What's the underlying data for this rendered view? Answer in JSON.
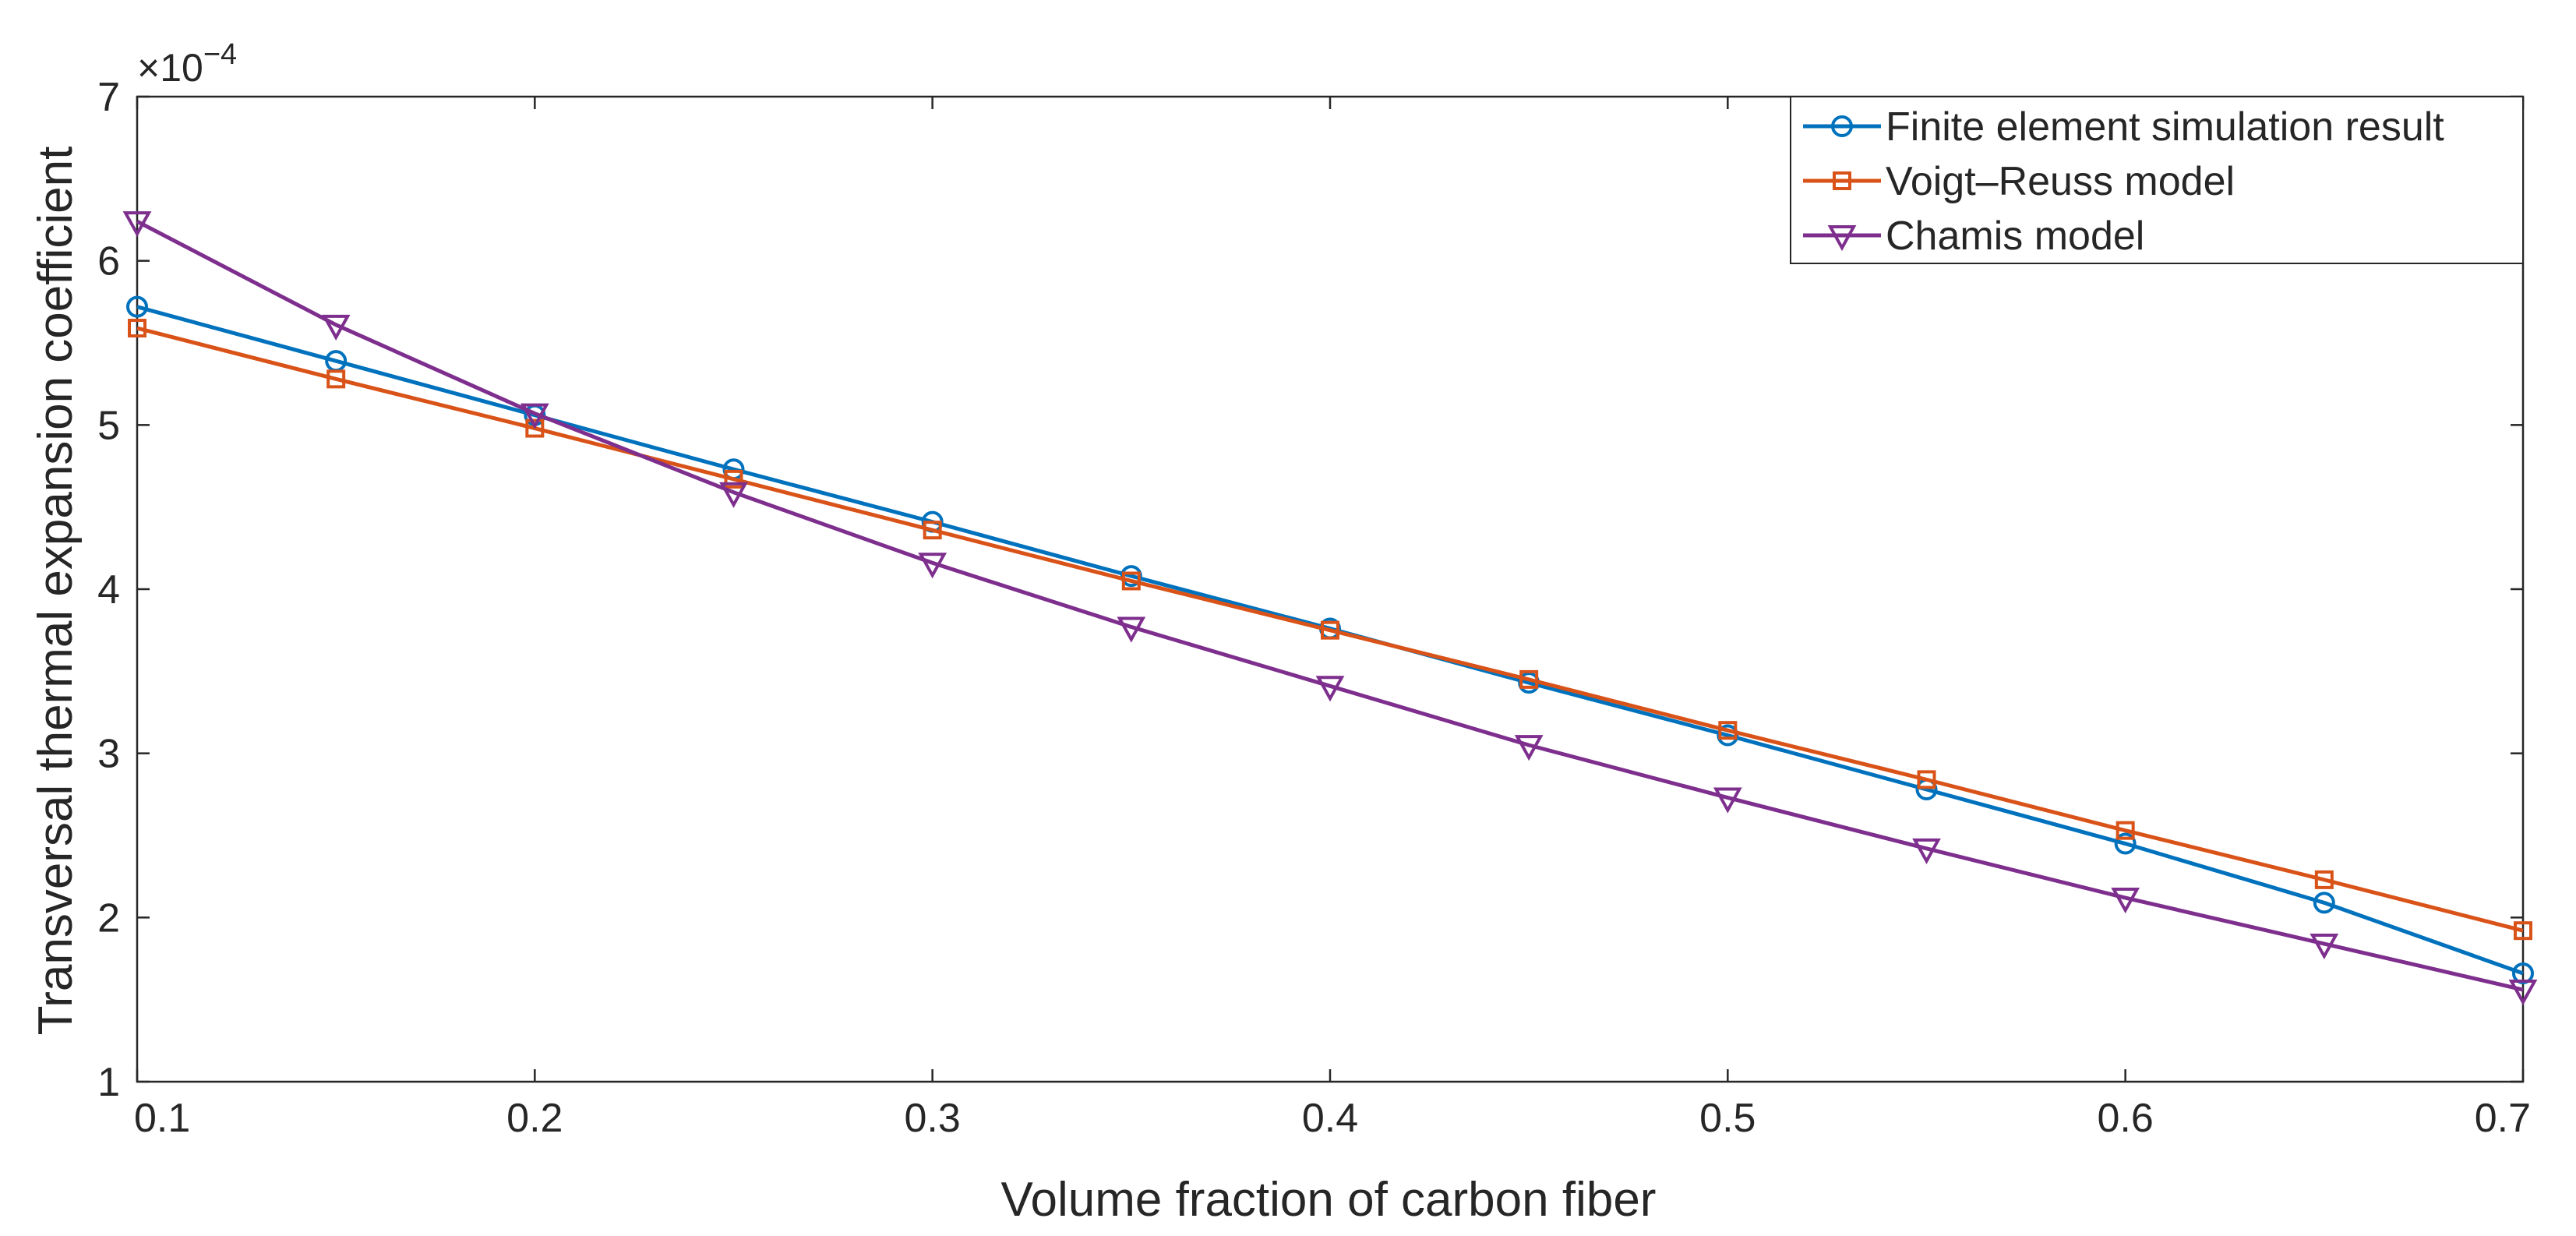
{
  "chart_data": {
    "type": "line",
    "title": "",
    "xlabel": "Volume fraction of carbon fiber",
    "ylabel": "Transversal thermal expansion coefficient",
    "y_multiplier_base": "×10",
    "y_multiplier_exponent": "−4",
    "xlim": [
      0.1,
      0.7
    ],
    "ylim": [
      1,
      7
    ],
    "x_ticks": [
      "0.1",
      "0.2",
      "0.3",
      "0.4",
      "0.5",
      "0.6",
      "0.7"
    ],
    "y_ticks": [
      "1",
      "2",
      "3",
      "4",
      "5",
      "6",
      "7"
    ],
    "x": [
      0.1,
      0.15,
      0.2,
      0.25,
      0.3,
      0.35,
      0.4,
      0.45,
      0.5,
      0.55,
      0.6,
      0.65,
      0.7
    ],
    "legend_position": "top-right",
    "grid": false,
    "series": [
      {
        "name": "Finite element simulation result",
        "color": "#0072BD",
        "marker": "circle",
        "values": [
          5.72,
          5.39,
          5.06,
          4.73,
          4.41,
          4.08,
          3.76,
          3.43,
          3.11,
          2.78,
          2.45,
          2.09,
          1.66
        ]
      },
      {
        "name": "Voigt–Reuss model",
        "color": "#D95319",
        "marker": "square",
        "values": [
          5.59,
          5.28,
          4.98,
          4.67,
          4.36,
          4.05,
          3.75,
          3.45,
          3.14,
          2.84,
          2.53,
          2.23,
          1.92
        ]
      },
      {
        "name": "Chamis model",
        "color": "#7E2F8E",
        "marker": "triangle-down",
        "values": [
          6.24,
          5.61,
          5.07,
          4.59,
          4.16,
          3.77,
          3.41,
          3.05,
          2.73,
          2.42,
          2.12,
          1.84,
          1.56
        ]
      }
    ]
  }
}
